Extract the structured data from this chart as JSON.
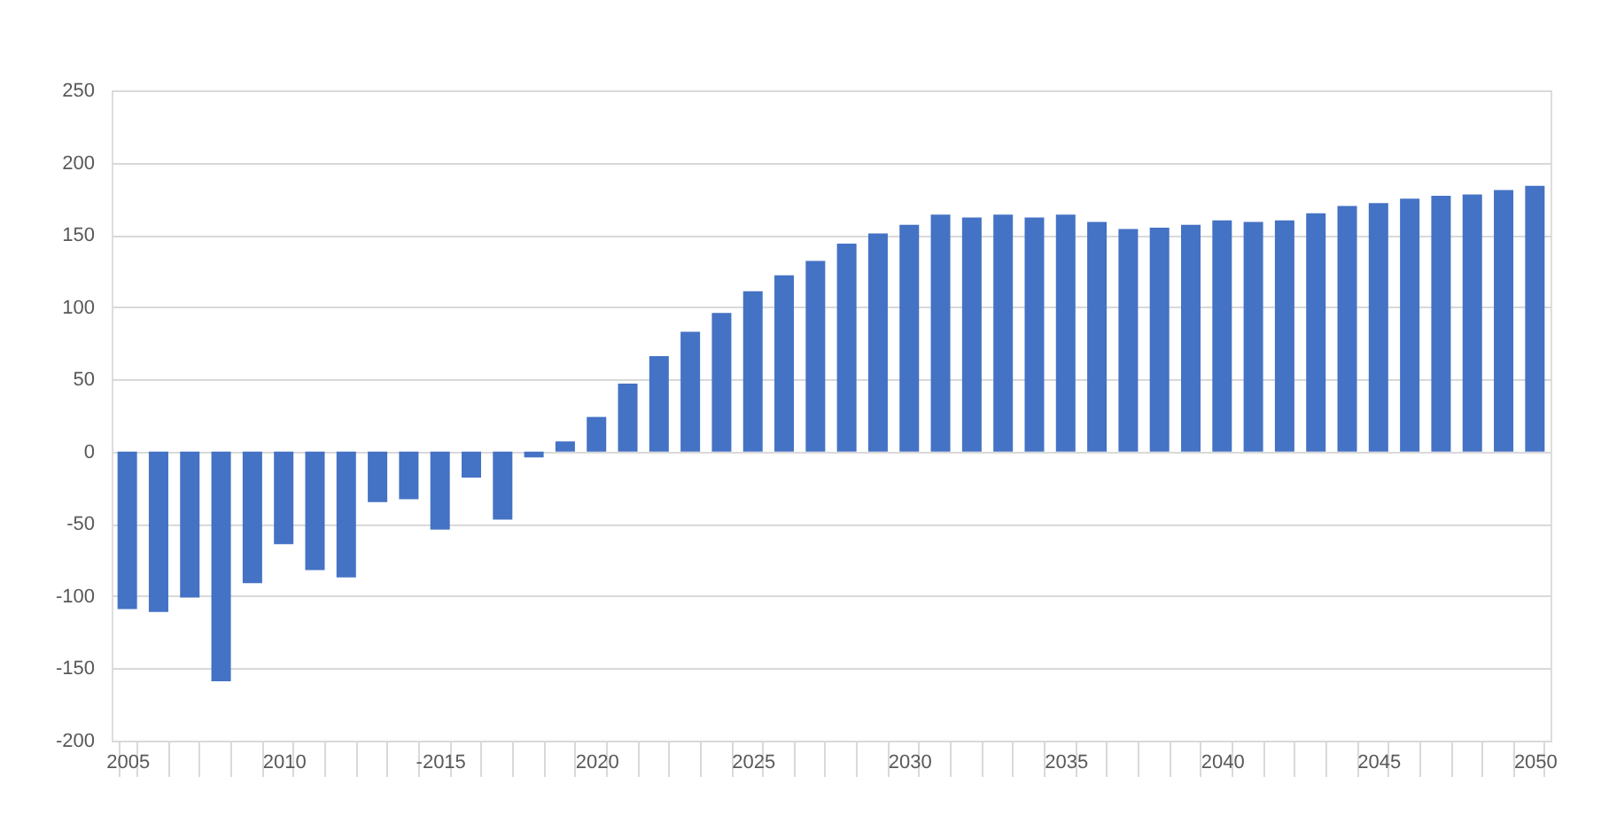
{
  "chart_data": {
    "type": "bar",
    "categories": [
      "2005",
      null,
      null,
      null,
      null,
      "2010",
      null,
      null,
      null,
      null,
      "-2015",
      null,
      null,
      null,
      null,
      "2020",
      null,
      null,
      null,
      null,
      "2025",
      null,
      null,
      null,
      null,
      "2030",
      null,
      null,
      null,
      null,
      "2035",
      null,
      null,
      null,
      null,
      "2040",
      null,
      null,
      null,
      null,
      "2045",
      null,
      null,
      null,
      null,
      "2050"
    ],
    "values": [
      -109,
      -111,
      -101,
      -159,
      -91,
      -64,
      -82,
      -87,
      -35,
      -33,
      -54,
      -18,
      -47,
      -4,
      7,
      24,
      47,
      66,
      83,
      96,
      111,
      122,
      132,
      144,
      151,
      157,
      164,
      162,
      164,
      162,
      164,
      159,
      154,
      155,
      157,
      160,
      159,
      160,
      165,
      170,
      172,
      175,
      177,
      178,
      181,
      184
    ],
    "color": "#4472c4",
    "ylim": [
      -200,
      250
    ],
    "yticks": [
      -200,
      -150,
      -100,
      -50,
      0,
      50,
      100,
      150,
      200,
      250
    ],
    "grid": "y"
  }
}
